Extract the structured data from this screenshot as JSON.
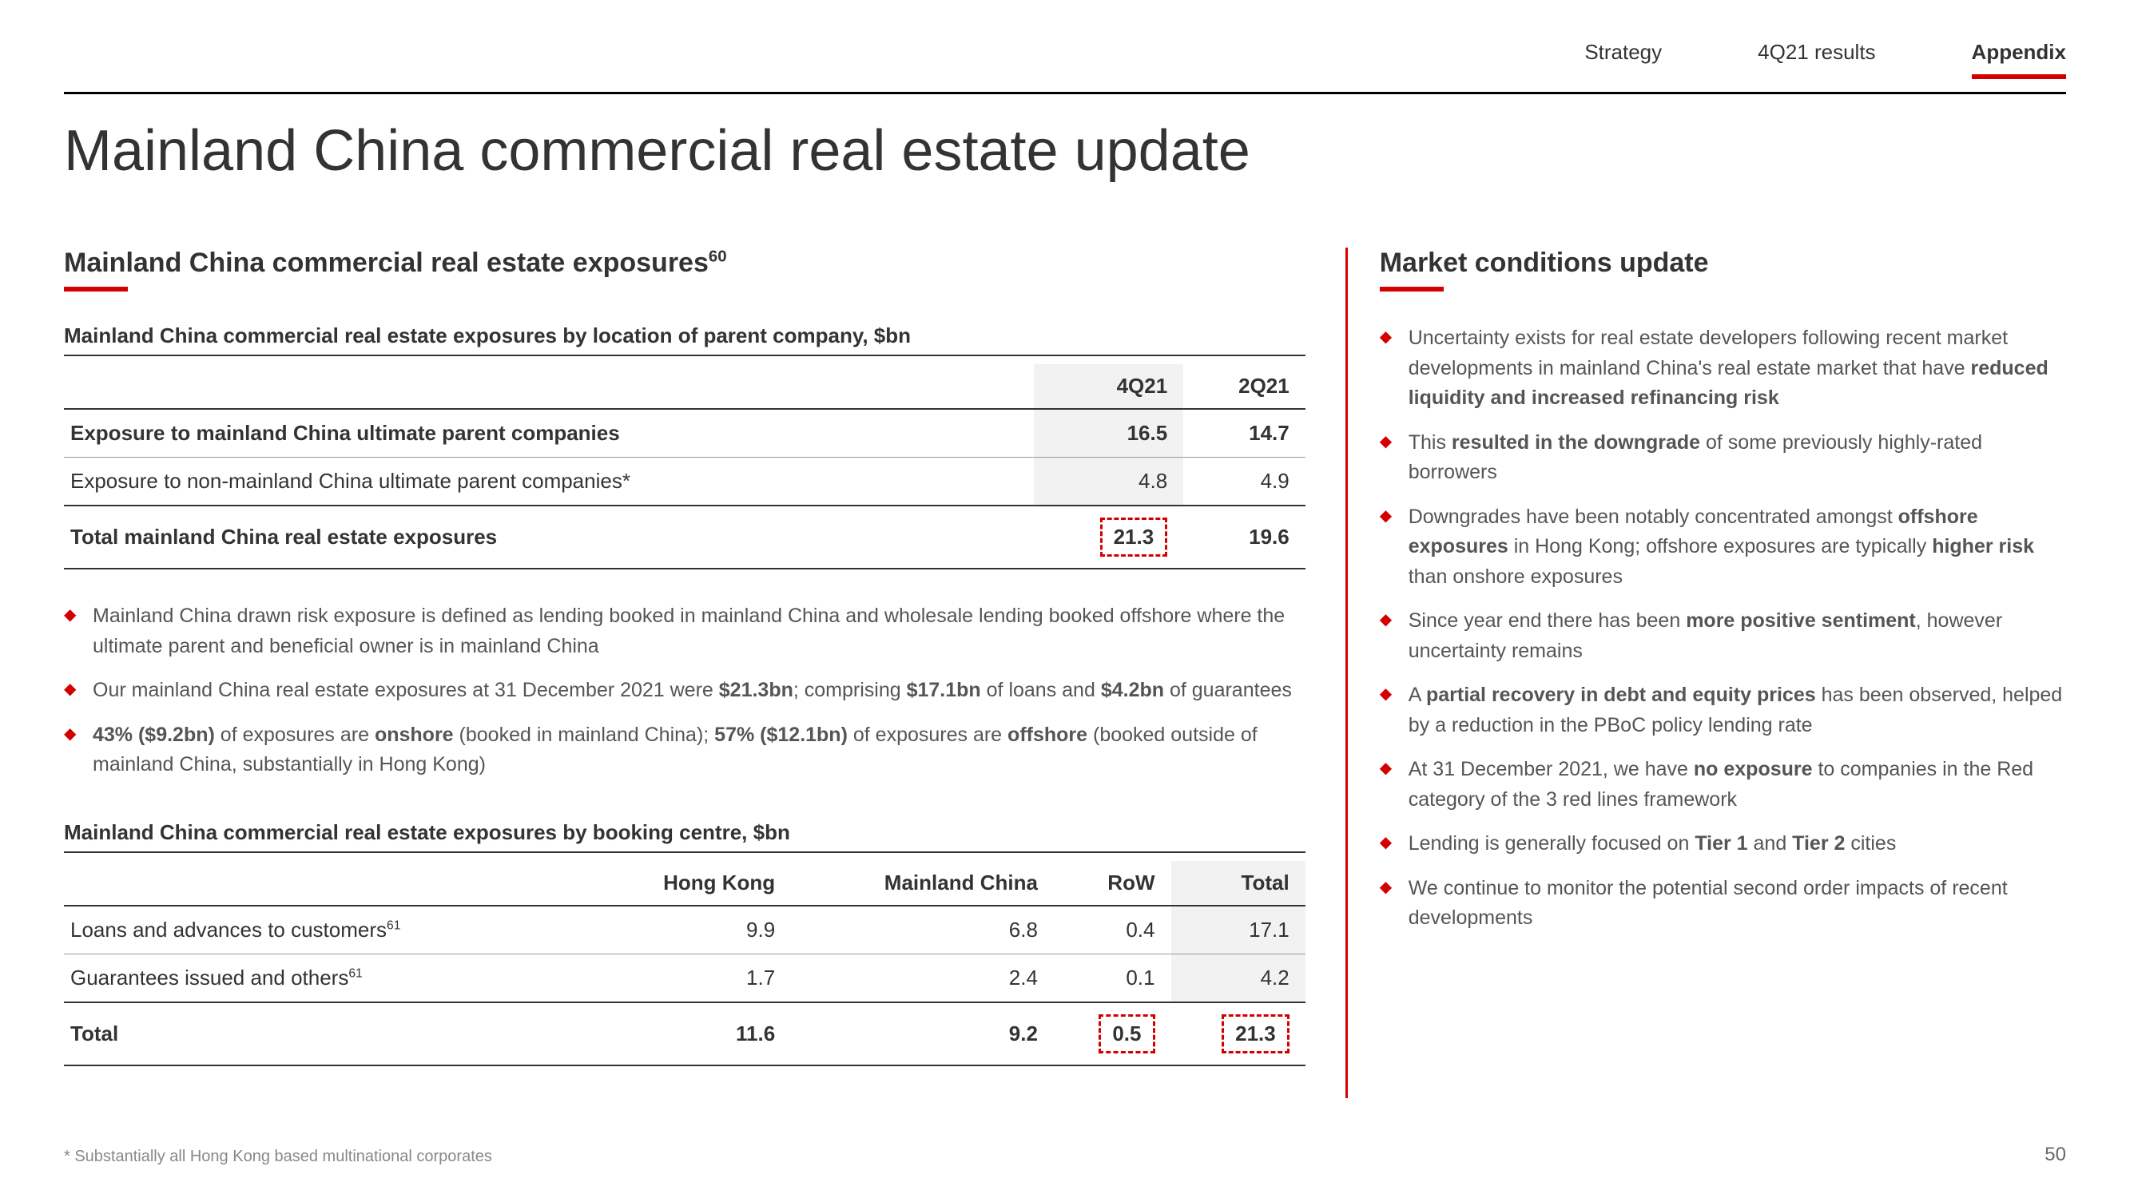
{
  "nav": {
    "items": [
      "Strategy",
      "4Q21 results",
      "Appendix"
    ],
    "active_index": 2
  },
  "page_title": "Mainland China commercial real estate update",
  "left": {
    "heading": "Mainland China commercial real estate exposures",
    "heading_sup": "60",
    "table1": {
      "title": "Mainland China commercial real estate exposures by location of parent company, $bn",
      "columns": [
        "",
        "4Q21",
        "2Q21"
      ],
      "rows": [
        {
          "label": "Exposure to mainland China ultimate parent companies",
          "c1": "16.5",
          "c2": "14.7",
          "bold": true
        },
        {
          "label": "Exposure to non-mainland China ultimate parent companies*",
          "c1": "4.8",
          "c2": "4.9",
          "bold": false
        }
      ],
      "total": {
        "label": "Total mainland China real estate exposures",
        "c1": "21.3",
        "c2": "19.6"
      },
      "highlight_col": 1
    },
    "bullets": [
      "Mainland China drawn risk exposure is defined as lending booked in mainland China and wholesale lending booked offshore where the ultimate parent and beneficial owner is in mainland China",
      "Our mainland China real estate exposures at 31 December 2021 were <b>$21.3bn</b>; comprising <b>$17.1bn</b> of loans and <b>$4.2bn</b> of guarantees",
      "<b>43% ($9.2bn)</b> of exposures are <b>onshore</b> (booked in mainland China); <b>57% ($12.1bn)</b> of exposures are <b>offshore</b> (booked outside of mainland China, substantially in Hong Kong)"
    ],
    "table2": {
      "title": "Mainland China commercial real estate exposures by booking centre, $bn",
      "columns": [
        "",
        "Hong Kong",
        "Mainland China",
        "RoW",
        "Total"
      ],
      "rows": [
        {
          "label": "Loans and advances to customers",
          "sup": "61",
          "v": [
            "9.9",
            "6.8",
            "0.4",
            "17.1"
          ]
        },
        {
          "label": "Guarantees issued and others",
          "sup": "61",
          "v": [
            "1.7",
            "2.4",
            "0.1",
            "4.2"
          ]
        }
      ],
      "total": {
        "label": "Total",
        "v": [
          "11.6",
          "9.2",
          "0.5",
          "21.3"
        ]
      }
    }
  },
  "right": {
    "heading": "Market conditions update",
    "bullets": [
      "Uncertainty exists for real estate developers following recent market developments in mainland China's real estate market that have <b>reduced liquidity and increased refinancing risk</b>",
      "This <b>resulted in the downgrade</b> of some previously highly-rated borrowers",
      "Downgrades have been notably concentrated amongst <b>offshore exposures</b> in Hong Kong; offshore exposures are typically <b>higher risk</b> than onshore exposures",
      "Since year end there has been <b>more positive sentiment</b>, however uncertainty remains",
      "A <b>partial recovery in debt and equity prices</b> has been observed, helped by a reduction in the PBoC policy lending rate",
      "At 31 December 2021, we have <b>no exposure</b> to companies in the Red category of the 3 red lines framework",
      "Lending is generally focused on <b>Tier 1</b> and <b>Tier 2</b> cities",
      "We continue to monitor the potential second order impacts of recent developments"
    ]
  },
  "footnote": "* Substantially all Hong Kong based multinational corporates",
  "page_number": "50"
}
